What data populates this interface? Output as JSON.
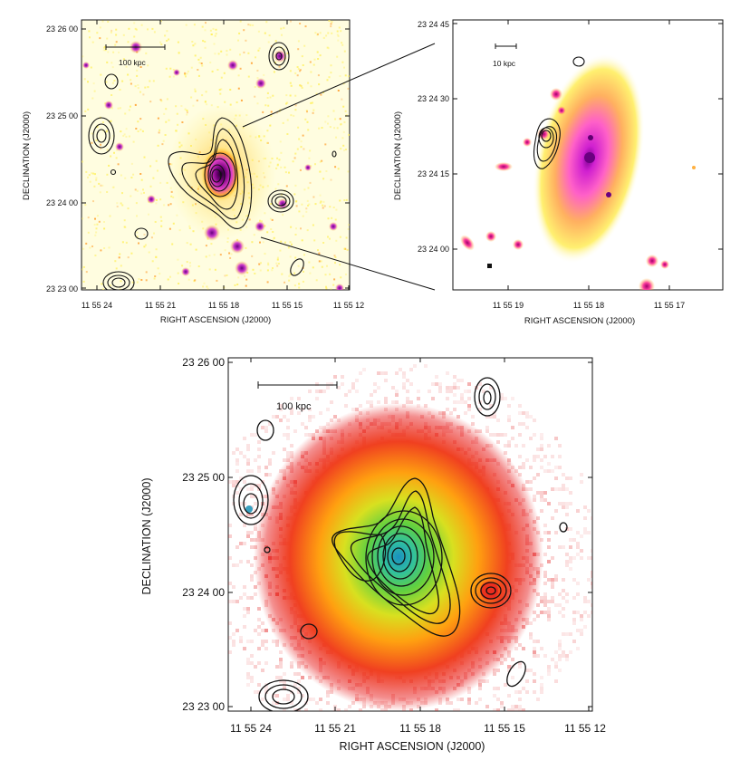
{
  "panels": {
    "top_left": {
      "ylabel": "DECLINATION  (J2000)",
      "xlabel": "RIGHT ASCENSION  (J2000)",
      "scalebar": "100 kpc",
      "yticks": [
        "23 26 00",
        "23 25 00",
        "23 24 00",
        "23 23 00"
      ],
      "xticks": [
        "11 55 24",
        "11 55 21",
        "11 55 18",
        "11 55 15",
        "11 55 12"
      ]
    },
    "top_right": {
      "ylabel": "DECLINATION  (J2000)",
      "xlabel": "RIGHT ASCENSION  (J2000)",
      "scalebar": "10 kpc",
      "yticks": [
        "23 24 45",
        "23 24 30",
        "23 24 15",
        "23 24 00"
      ],
      "xticks": [
        "11 55 19",
        "11 55 18",
        "11 55 17"
      ]
    },
    "bottom": {
      "ylabel": "DECLINATION  (J2000)",
      "xlabel": "RIGHT ASCENSION  (J2000)",
      "scalebar": "100 kpc",
      "yticks": [
        "23 26 00",
        "23 25 00",
        "23 24 00",
        "23 23 00"
      ],
      "xticks": [
        "11 55 24",
        "11 55 21",
        "11 55 18",
        "11 55 15",
        "11 55 12"
      ]
    }
  },
  "colors": {
    "optical_bg": "#fff060",
    "optical_core": "#2a0030",
    "xray_outer": "#e21a1a",
    "xray_mid": "#ff9a10",
    "xray_core": "#3ab4c8",
    "contour": "#111111"
  }
}
